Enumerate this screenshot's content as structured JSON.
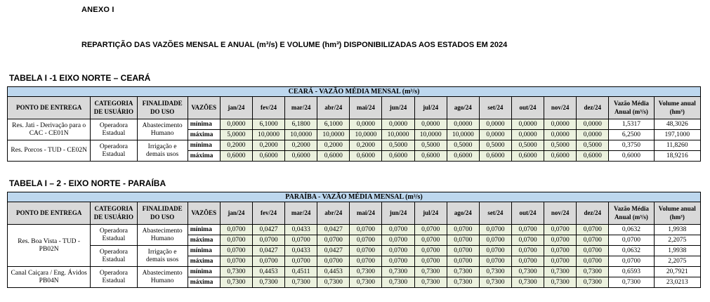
{
  "page": {
    "anexo_label": "ANEXO I",
    "title": "REPARTIÇÃO DAS VAZÕES MENSAL E ANUAL (m³/s) E VOLUME (hm³) DISPONIBILIZADAS AOS ESTADOS EM 2024"
  },
  "colors": {
    "table_title_bg": "#BDD7EE",
    "header_bg": "#D9D9D9",
    "value_cell_bg": "#EBF1DE"
  },
  "column_headers": {
    "ponto": "PONTO DE ENTREGA",
    "categoria": "CATEGORIA\nDE USUÁRIO",
    "finalidade": "FINALIDADE\nDO USO",
    "vazoes": "VAZÕES",
    "media": "Vazão Média\nAnual (m³/s)",
    "volume": "Volume anual\n(hm³)"
  },
  "months": [
    "jan/24",
    "fev/24",
    "mar/24",
    "abr/24",
    "mai/24",
    "jun/24",
    "jul/24",
    "ago/24",
    "set/24",
    "out/24",
    "nov/24",
    "dez/24"
  ],
  "tables": [
    {
      "heading": "TABELA I -1 EIXO NORTE – CEARÁ",
      "title": "CEARÁ - VAZÃO MÉDIA MENSAL (m³/s)",
      "groups": [
        {
          "ponto": "Res. Jati - Derivação para o\nCAC - CE01N",
          "blocks": [
            {
              "categoria": "Operadora\nEstadual",
              "finalidade": "Abastecimento\nHumano",
              "rows": [
                {
                  "vazao": "mínima",
                  "values": [
                    "0,0000",
                    "6,1000",
                    "6,1800",
                    "6,1000",
                    "0,0000",
                    "0,0000",
                    "0,0000",
                    "0,0000",
                    "0,0000",
                    "0,0000",
                    "0,0000",
                    "0,0000"
                  ],
                  "media": "1,5317",
                  "volume": "48,3026"
                },
                {
                  "vazao": "máxima",
                  "values": [
                    "5,0000",
                    "10,0000",
                    "10,0000",
                    "10,0000",
                    "10,0000",
                    "10,0000",
                    "10,0000",
                    "10,0000",
                    "0,0000",
                    "0,0000",
                    "0,0000",
                    "0,0000"
                  ],
                  "media": "6,2500",
                  "volume": "197,1000"
                }
              ]
            }
          ]
        },
        {
          "ponto": "Res. Porcos - TUD - CE02N",
          "blocks": [
            {
              "categoria": "Operadora\nEstadual",
              "finalidade": "Irrigação e\ndemais usos",
              "rows": [
                {
                  "vazao": "mínima",
                  "values": [
                    "0,2000",
                    "0,2000",
                    "0,2000",
                    "0,2000",
                    "0,2000",
                    "0,5000",
                    "0,5000",
                    "0,5000",
                    "0,5000",
                    "0,5000",
                    "0,5000",
                    "0,5000"
                  ],
                  "media": "0,3750",
                  "volume": "11,8260"
                },
                {
                  "vazao": "máxima",
                  "values": [
                    "0,6000",
                    "0,6000",
                    "0,6000",
                    "0,6000",
                    "0,6000",
                    "0,6000",
                    "0,6000",
                    "0,6000",
                    "0,6000",
                    "0,6000",
                    "0,6000",
                    "0,6000"
                  ],
                  "media": "0,6000",
                  "volume": "18,9216"
                }
              ]
            }
          ]
        }
      ]
    },
    {
      "heading": "TABELA I – 2 - EIXO NORTE - PARAÍBA",
      "title": "PARAÍBA - VAZÃO MÉDIA MENSAL (m³/s)",
      "groups": [
        {
          "ponto": "Res. Boa Vista - TUD -\nPB02N",
          "blocks": [
            {
              "categoria": "Operadora\nEstadual",
              "finalidade": "Abastecimento\nHumano",
              "rows": [
                {
                  "vazao": "mínima",
                  "values": [
                    "0,0700",
                    "0,0427",
                    "0,0433",
                    "0,0427",
                    "0,0700",
                    "0,0700",
                    "0,0700",
                    "0,0700",
                    "0,0700",
                    "0,0700",
                    "0,0700",
                    "0,0700"
                  ],
                  "media": "0,0632",
                  "volume": "1,9938"
                },
                {
                  "vazao": "máxima",
                  "values": [
                    "0,0700",
                    "0,0700",
                    "0,0700",
                    "0,0700",
                    "0,0700",
                    "0,0700",
                    "0,0700",
                    "0,0700",
                    "0,0700",
                    "0,0700",
                    "0,0700",
                    "0,0700"
                  ],
                  "media": "0,0700",
                  "volume": "2,2075"
                }
              ]
            },
            {
              "categoria": "Operadora\nEstadual",
              "finalidade": "Irrigação e\ndemais usos",
              "rows": [
                {
                  "vazao": "mínima",
                  "values": [
                    "0,0700",
                    "0,0427",
                    "0,0433",
                    "0,0427",
                    "0,0700",
                    "0,0700",
                    "0,0700",
                    "0,0700",
                    "0,0700",
                    "0,0700",
                    "0,0700",
                    "0,0700"
                  ],
                  "media": "0,0632",
                  "volume": "1,9938"
                },
                {
                  "vazao": "máxima",
                  "values": [
                    "0,0700",
                    "0,0700",
                    "0,0700",
                    "0,0700",
                    "0,0700",
                    "0,0700",
                    "0,0700",
                    "0,0700",
                    "0,0700",
                    "0,0700",
                    "0,0700",
                    "0,0700"
                  ],
                  "media": "0,0700",
                  "volume": "2,2075"
                }
              ]
            }
          ]
        },
        {
          "ponto": "Canal Caiçara / Eng. Ávidos\nPB04N",
          "blocks": [
            {
              "categoria": "Operadora\nEstadual",
              "finalidade": "Abastecimento\nHumano",
              "rows": [
                {
                  "vazao": "mínima",
                  "values": [
                    "0,7300",
                    "0,4453",
                    "0,4511",
                    "0,4453",
                    "0,7300",
                    "0,7300",
                    "0,7300",
                    "0,7300",
                    "0,7300",
                    "0,7300",
                    "0,7300",
                    "0,7300"
                  ],
                  "media": "0,6593",
                  "volume": "20,7921"
                },
                {
                  "vazao": "máxima",
                  "values": [
                    "0,7300",
                    "0,7300",
                    "0,7300",
                    "0,7300",
                    "0,7300",
                    "0,7300",
                    "0,7300",
                    "0,7300",
                    "0,7300",
                    "0,7300",
                    "0,7300",
                    "0,7300"
                  ],
                  "media": "0,7300",
                  "volume": "23,0213"
                }
              ]
            }
          ]
        }
      ]
    }
  ]
}
